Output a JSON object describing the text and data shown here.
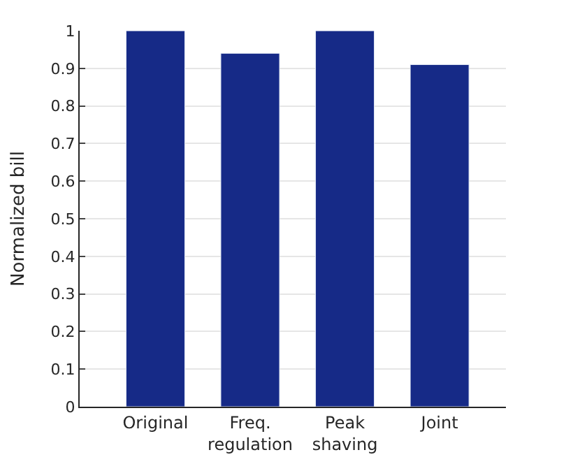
{
  "chart_data": {
    "type": "bar",
    "ylabel": "Normalized bill",
    "categories": [
      "Original",
      "Freq.\nregulation",
      "Peak\nshaving",
      "Joint"
    ],
    "values": [
      1,
      0.94,
      1,
      0.91
    ],
    "color": "#162a87",
    "ylim": [
      0,
      1
    ],
    "yticks": [
      0,
      0.1,
      0.2,
      0.3,
      0.4,
      0.5,
      0.6,
      0.7,
      0.8,
      0.9,
      1
    ],
    "grid": "y",
    "legend": false
  }
}
